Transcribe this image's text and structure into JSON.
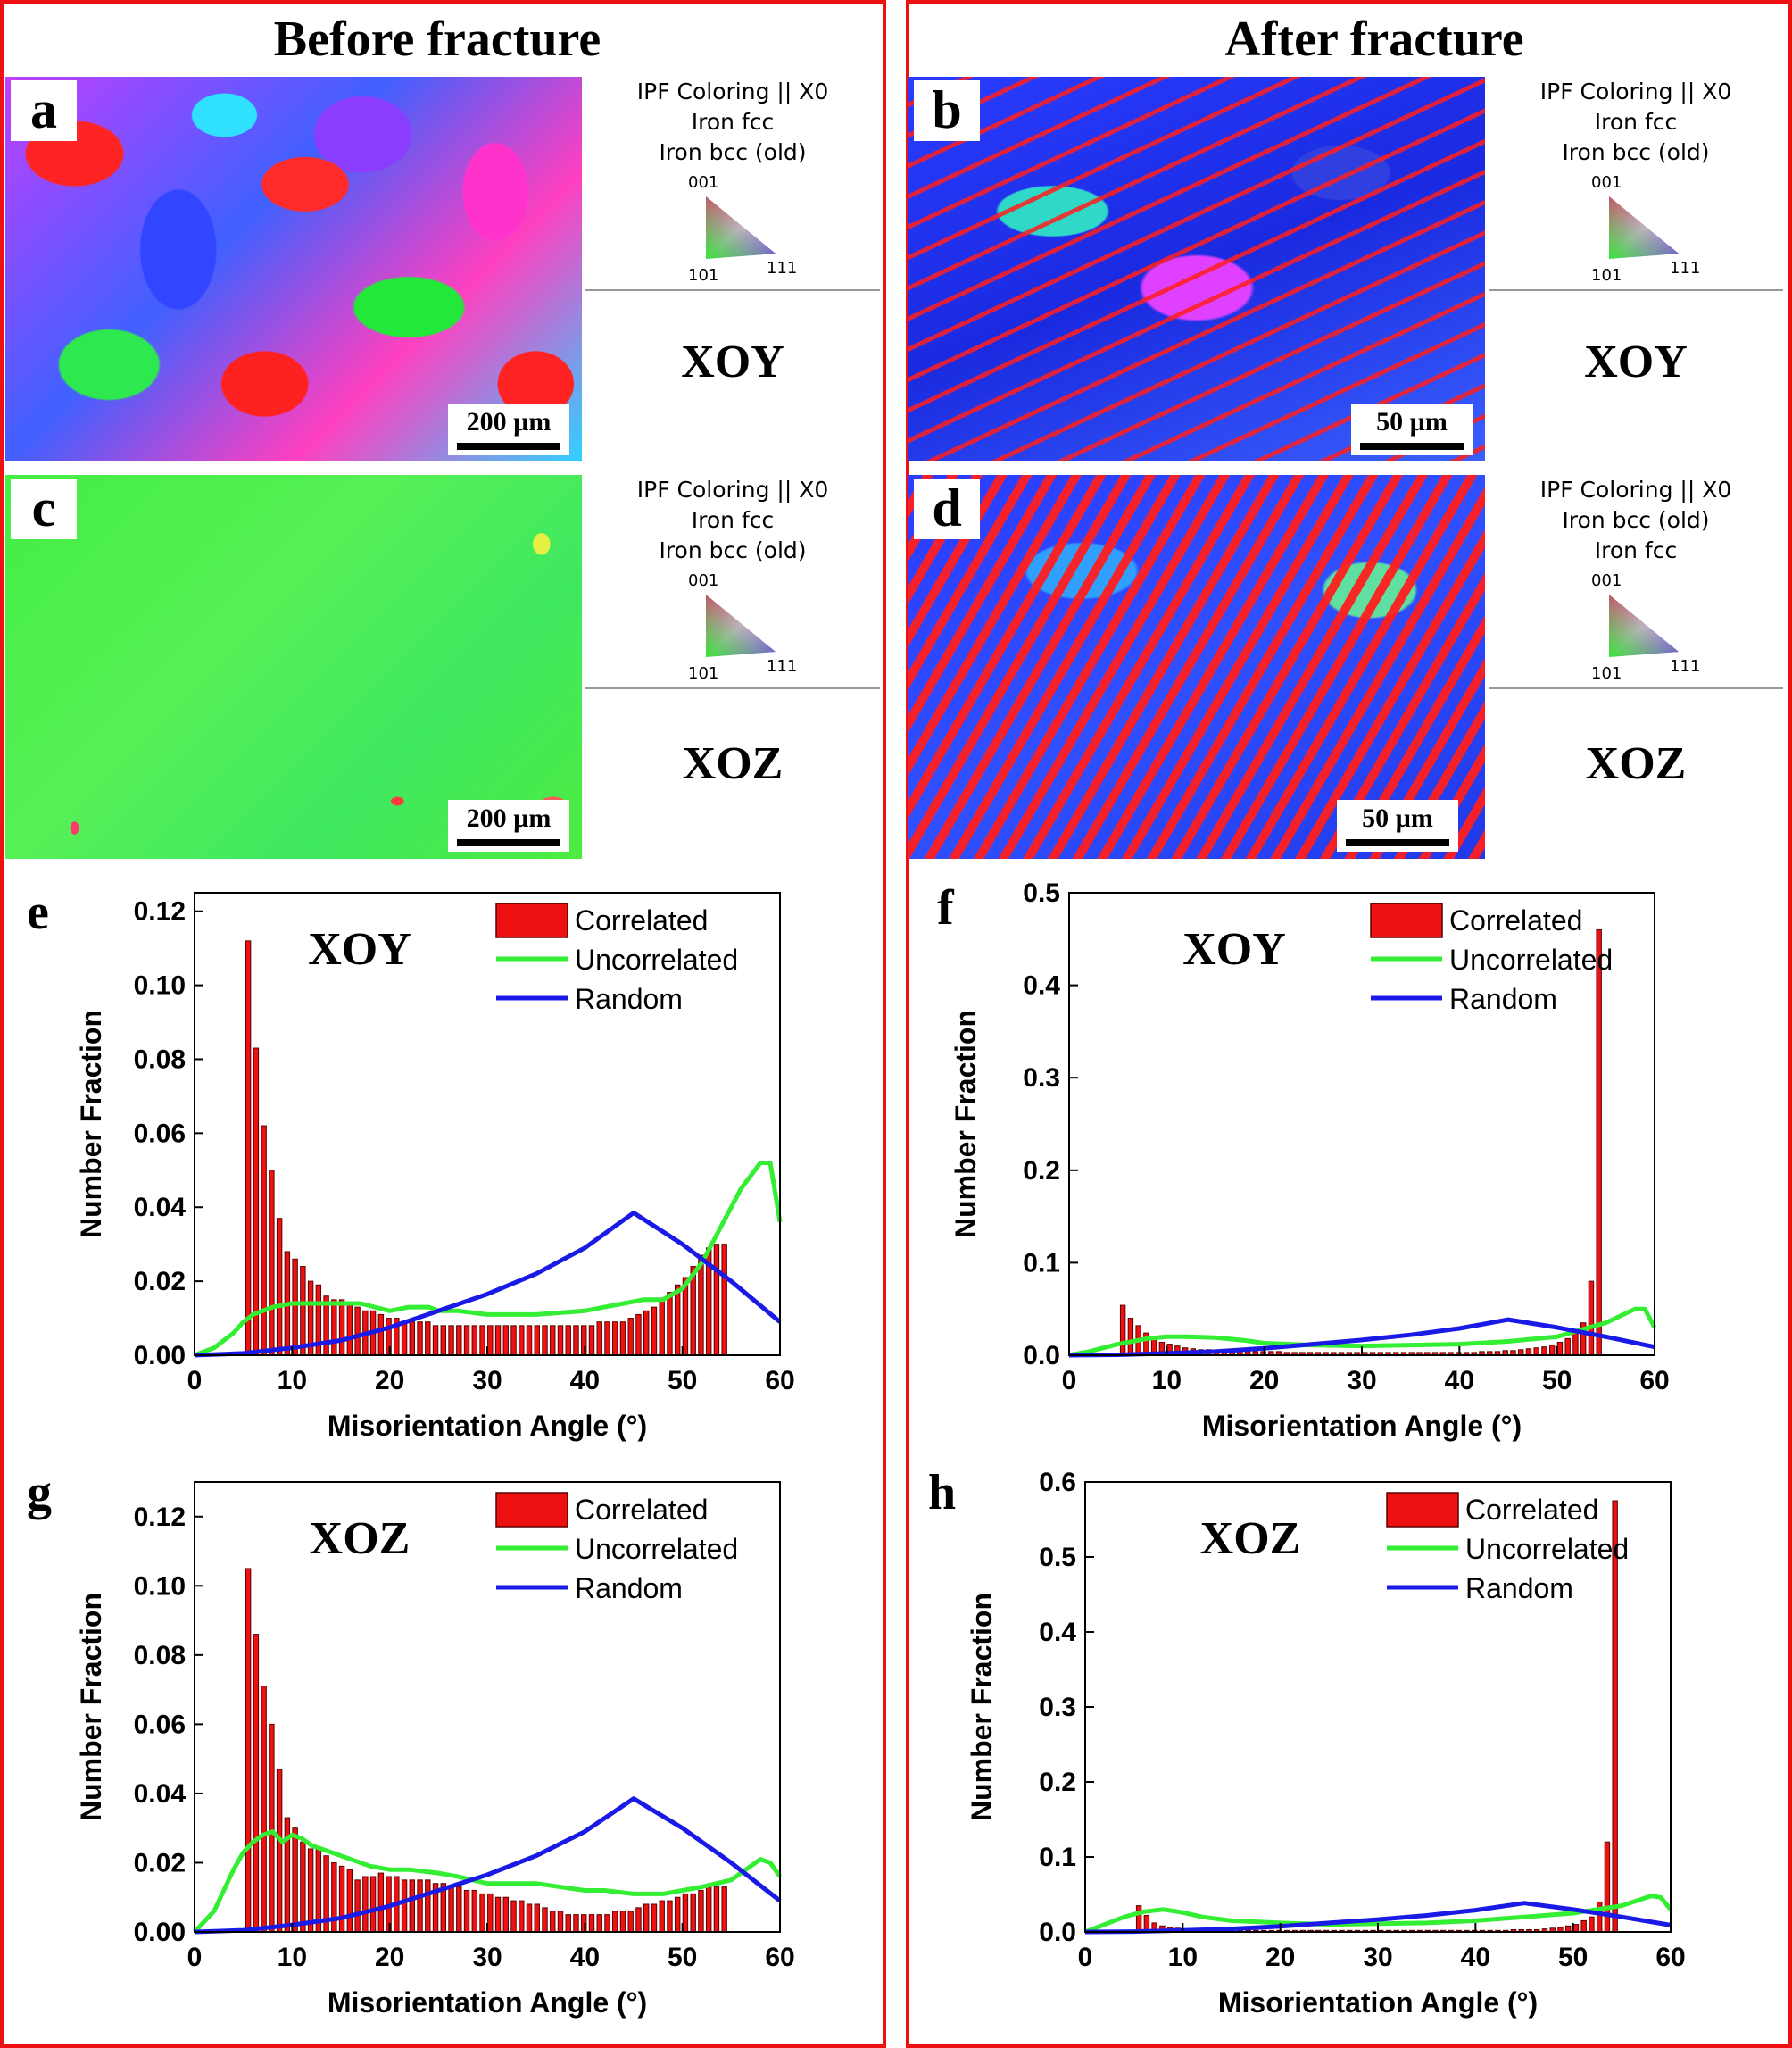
{
  "columns": {
    "left_title": "Before fracture",
    "right_title": "After fracture"
  },
  "maps": {
    "a": {
      "letter": "a",
      "scale": "200 µm",
      "legend": [
        "IPF Coloring || X0",
        "Iron fcc",
        "Iron bcc (old)"
      ],
      "plane": "XOY"
    },
    "b": {
      "letter": "b",
      "scale": "50 µm",
      "legend": [
        "IPF Coloring || X0",
        "Iron fcc",
        "Iron bcc (old)"
      ],
      "plane": "XOY"
    },
    "c": {
      "letter": "c",
      "scale": "200 µm",
      "legend": [
        "IPF Coloring || X0",
        "Iron fcc",
        "Iron bcc (old)"
      ],
      "plane": "XOZ"
    },
    "d": {
      "letter": "d",
      "scale": "50 µm",
      "legend": [
        "IPF Coloring || X0",
        "Iron bcc (old)",
        "Iron fcc"
      ],
      "plane": "XOZ"
    }
  },
  "ipf_triangle": {
    "top": "001",
    "left": "101",
    "right": "111"
  },
  "colors": {
    "correlated": "#ee1111",
    "uncorrelated": "#33ee33",
    "random": "#1a1ae6",
    "frame": "#ee1111"
  },
  "chart_data": [
    {
      "id": "e",
      "type": "bar",
      "title": "XOY",
      "xlabel": "Misorientation Angle (°)",
      "ylabel": "Number Fraction",
      "xlim": [
        0,
        60
      ],
      "ylim": [
        0,
        0.125
      ],
      "xticks": [
        "0",
        "10",
        "20",
        "30",
        "40",
        "50",
        "60"
      ],
      "yticks": [
        "0.00",
        "0.02",
        "0.04",
        "0.06",
        "0.08",
        "0.10",
        "0.12"
      ],
      "legend": [
        "Correlated",
        "Uncorrelated",
        "Random"
      ],
      "correlated": {
        "x_start": 5.5,
        "x_step": 0.8,
        "values": [
          0.112,
          0.083,
          0.062,
          0.05,
          0.037,
          0.028,
          0.026,
          0.024,
          0.02,
          0.019,
          0.016,
          0.015,
          0.015,
          0.014,
          0.013,
          0.012,
          0.012,
          0.011,
          0.01,
          0.01,
          0.009,
          0.009,
          0.009,
          0.009,
          0.008,
          0.008,
          0.008,
          0.008,
          0.008,
          0.008,
          0.008,
          0.008,
          0.008,
          0.008,
          0.008,
          0.008,
          0.008,
          0.008,
          0.008,
          0.008,
          0.008,
          0.008,
          0.008,
          0.008,
          0.008,
          0.009,
          0.009,
          0.009,
          0.009,
          0.01,
          0.011,
          0.012,
          0.013,
          0.015,
          0.017,
          0.019,
          0.021,
          0.024,
          0.027,
          0.029,
          0.03,
          0.03
        ]
      },
      "uncorrelated": {
        "x": [
          0,
          2,
          4,
          5,
          6,
          8,
          10,
          12,
          15,
          17,
          20,
          22,
          24,
          25,
          27,
          30,
          35,
          40,
          42,
          44,
          46,
          48,
          50,
          52,
          54,
          56,
          58,
          59,
          60
        ],
        "y": [
          0,
          0.002,
          0.006,
          0.009,
          0.011,
          0.013,
          0.014,
          0.014,
          0.014,
          0.014,
          0.012,
          0.013,
          0.013,
          0.012,
          0.012,
          0.011,
          0.011,
          0.012,
          0.013,
          0.014,
          0.015,
          0.015,
          0.018,
          0.025,
          0.035,
          0.045,
          0.052,
          0.052,
          0.036
        ]
      },
      "random": {
        "x": [
          0,
          5,
          10,
          15,
          20,
          25,
          30,
          35,
          40,
          45,
          50,
          55,
          60
        ],
        "y": [
          0,
          0.0005,
          0.002,
          0.004,
          0.0075,
          0.012,
          0.0165,
          0.022,
          0.029,
          0.0385,
          0.03,
          0.02,
          0.009
        ]
      }
    },
    {
      "id": "f",
      "type": "bar",
      "title": "XOY",
      "xlabel": "Misorientation Angle (°)",
      "ylabel": "Number Fraction",
      "xlim": [
        0,
        60
      ],
      "ylim": [
        0,
        0.5
      ],
      "xticks": [
        "0",
        "10",
        "20",
        "30",
        "40",
        "50",
        "60"
      ],
      "yticks": [
        "0.0",
        "0.1",
        "0.2",
        "0.3",
        "0.4",
        "0.5"
      ],
      "legend": [
        "Correlated",
        "Uncorrelated",
        "Random"
      ],
      "correlated": {
        "x_start": 5.5,
        "x_step": 0.8,
        "values": [
          0.054,
          0.04,
          0.032,
          0.024,
          0.018,
          0.014,
          0.012,
          0.01,
          0.008,
          0.007,
          0.006,
          0.006,
          0.005,
          0.005,
          0.005,
          0.004,
          0.004,
          0.004,
          0.004,
          0.004,
          0.004,
          0.003,
          0.003,
          0.003,
          0.003,
          0.003,
          0.003,
          0.003,
          0.003,
          0.003,
          0.003,
          0.003,
          0.003,
          0.003,
          0.003,
          0.003,
          0.003,
          0.003,
          0.003,
          0.003,
          0.003,
          0.003,
          0.003,
          0.003,
          0.003,
          0.003,
          0.004,
          0.004,
          0.004,
          0.005,
          0.005,
          0.006,
          0.007,
          0.008,
          0.009,
          0.011,
          0.014,
          0.018,
          0.025,
          0.035,
          0.08,
          0.46
        ]
      },
      "uncorrelated": {
        "x": [
          0,
          2,
          5,
          8,
          10,
          12,
          15,
          18,
          20,
          25,
          30,
          35,
          40,
          45,
          50,
          55,
          58,
          59,
          60
        ],
        "y": [
          0,
          0.004,
          0.012,
          0.018,
          0.02,
          0.02,
          0.019,
          0.016,
          0.013,
          0.011,
          0.01,
          0.011,
          0.012,
          0.015,
          0.02,
          0.035,
          0.05,
          0.05,
          0.03
        ]
      },
      "random": {
        "x": [
          0,
          5,
          10,
          15,
          20,
          25,
          30,
          35,
          40,
          45,
          50,
          55,
          60
        ],
        "y": [
          0,
          0.0005,
          0.002,
          0.004,
          0.0075,
          0.012,
          0.0165,
          0.022,
          0.029,
          0.0385,
          0.03,
          0.02,
          0.009
        ]
      }
    },
    {
      "id": "g",
      "type": "bar",
      "title": "XOZ",
      "xlabel": "Misorientation Angle (°)",
      "ylabel": "Number Fraction",
      "xlim": [
        0,
        60
      ],
      "ylim": [
        0,
        0.13
      ],
      "xticks": [
        "0",
        "10",
        "20",
        "30",
        "40",
        "50",
        "60"
      ],
      "yticks": [
        "0.00",
        "0.02",
        "0.04",
        "0.06",
        "0.08",
        "0.10",
        "0.12"
      ],
      "legend": [
        "Correlated",
        "Uncorrelated",
        "Random"
      ],
      "correlated": {
        "x_start": 5.5,
        "x_step": 0.8,
        "values": [
          0.105,
          0.086,
          0.071,
          0.06,
          0.047,
          0.033,
          0.03,
          0.026,
          0.024,
          0.024,
          0.022,
          0.02,
          0.019,
          0.018,
          0.015,
          0.016,
          0.016,
          0.017,
          0.016,
          0.016,
          0.015,
          0.015,
          0.015,
          0.015,
          0.014,
          0.014,
          0.013,
          0.013,
          0.012,
          0.012,
          0.011,
          0.011,
          0.01,
          0.01,
          0.009,
          0.009,
          0.008,
          0.008,
          0.007,
          0.006,
          0.006,
          0.005,
          0.005,
          0.005,
          0.005,
          0.005,
          0.005,
          0.006,
          0.006,
          0.006,
          0.007,
          0.008,
          0.008,
          0.009,
          0.009,
          0.01,
          0.011,
          0.011,
          0.012,
          0.013,
          0.013,
          0.013
        ]
      },
      "uncorrelated": {
        "x": [
          0,
          2,
          4,
          5,
          6,
          7,
          8,
          9,
          10,
          11,
          12,
          15,
          18,
          20,
          22,
          25,
          27,
          30,
          35,
          40,
          42,
          45,
          48,
          50,
          52,
          55,
          57,
          58,
          59,
          60
        ],
        "y": [
          0,
          0.006,
          0.018,
          0.023,
          0.026,
          0.028,
          0.029,
          0.026,
          0.028,
          0.027,
          0.025,
          0.022,
          0.019,
          0.018,
          0.018,
          0.017,
          0.016,
          0.014,
          0.014,
          0.012,
          0.012,
          0.011,
          0.011,
          0.012,
          0.013,
          0.015,
          0.019,
          0.021,
          0.02,
          0.016
        ]
      },
      "random": {
        "x": [
          0,
          5,
          10,
          15,
          20,
          25,
          30,
          35,
          40,
          45,
          50,
          55,
          60
        ],
        "y": [
          0,
          0.0005,
          0.002,
          0.004,
          0.0075,
          0.012,
          0.0165,
          0.022,
          0.029,
          0.0385,
          0.03,
          0.02,
          0.009
        ]
      }
    },
    {
      "id": "h",
      "type": "bar",
      "title": "XOZ",
      "xlabel": "Misorientation Angle (°)",
      "ylabel": "Number Fraction",
      "xlim": [
        0,
        60
      ],
      "ylim": [
        0,
        0.6
      ],
      "xticks": [
        "0",
        "10",
        "20",
        "30",
        "40",
        "50",
        "60"
      ],
      "yticks": [
        "0.0",
        "0.1",
        "0.2",
        "0.3",
        "0.4",
        "0.5",
        "0.6"
      ],
      "legend": [
        "Correlated",
        "Uncorrelated",
        "Random"
      ],
      "correlated": {
        "x_start": 5.5,
        "x_step": 0.8,
        "values": [
          0.035,
          0.022,
          0.012,
          0.008,
          0.006,
          0.005,
          0.004,
          0.004,
          0.003,
          0.003,
          0.003,
          0.003,
          0.002,
          0.002,
          0.002,
          0.002,
          0.002,
          0.002,
          0.002,
          0.002,
          0.002,
          0.002,
          0.002,
          0.002,
          0.002,
          0.002,
          0.002,
          0.002,
          0.002,
          0.002,
          0.002,
          0.002,
          0.002,
          0.002,
          0.002,
          0.002,
          0.002,
          0.002,
          0.002,
          0.002,
          0.002,
          0.002,
          0.002,
          0.002,
          0.002,
          0.002,
          0.002,
          0.002,
          0.003,
          0.003,
          0.003,
          0.003,
          0.004,
          0.005,
          0.006,
          0.008,
          0.01,
          0.015,
          0.02,
          0.04,
          0.12,
          0.575
        ]
      },
      "uncorrelated": {
        "x": [
          0,
          2,
          4,
          6,
          8,
          10,
          12,
          15,
          20,
          25,
          30,
          35,
          40,
          45,
          50,
          55,
          58,
          59,
          60
        ],
        "y": [
          0,
          0.01,
          0.02,
          0.027,
          0.03,
          0.026,
          0.02,
          0.015,
          0.012,
          0.01,
          0.011,
          0.012,
          0.015,
          0.02,
          0.025,
          0.035,
          0.048,
          0.046,
          0.03
        ]
      },
      "random": {
        "x": [
          0,
          5,
          10,
          15,
          20,
          25,
          30,
          35,
          40,
          45,
          50,
          55,
          60
        ],
        "y": [
          0,
          0.0005,
          0.002,
          0.004,
          0.0075,
          0.012,
          0.0165,
          0.022,
          0.029,
          0.0385,
          0.03,
          0.02,
          0.009
        ]
      }
    }
  ]
}
